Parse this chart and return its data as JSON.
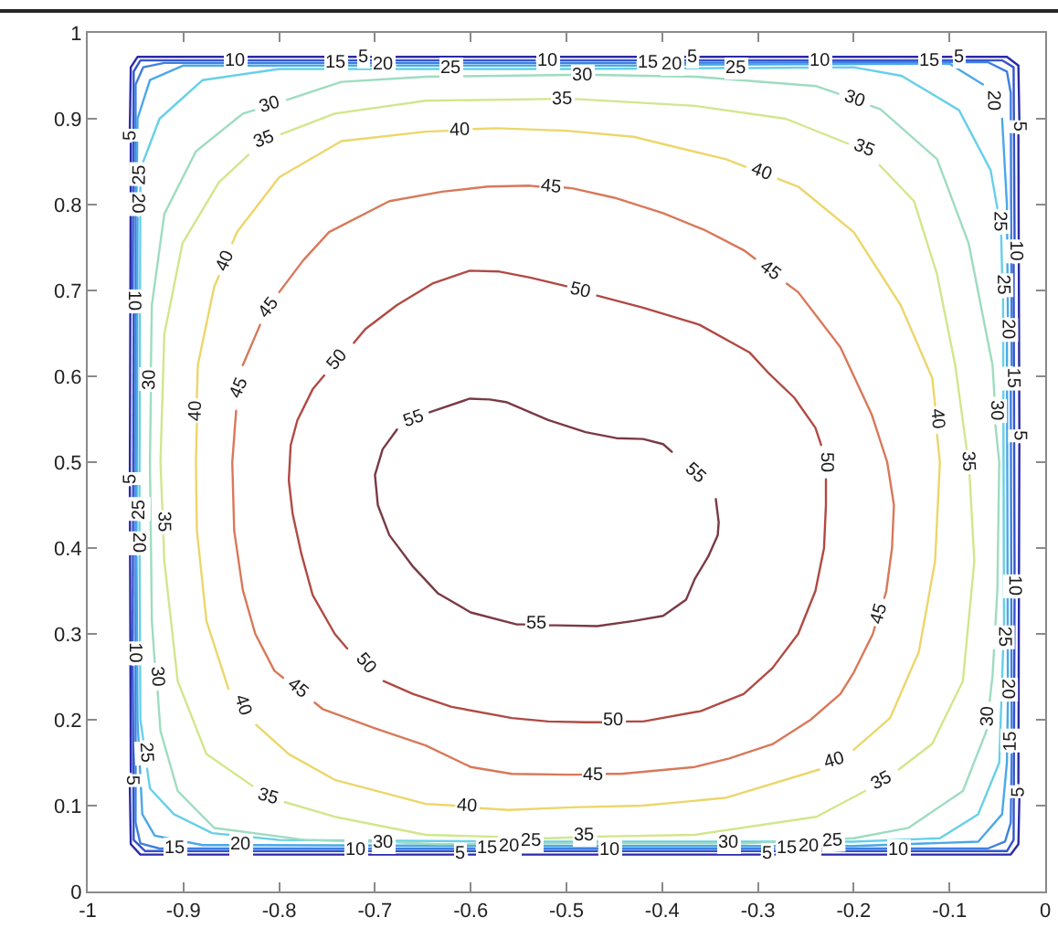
{
  "chart_data": {
    "type": "line",
    "xlim": [
      -1,
      0
    ],
    "ylim": [
      0,
      1
    ],
    "xticks": [
      -1,
      -0.9,
      -0.8,
      -0.7,
      -0.6,
      -0.5,
      -0.4,
      -0.3,
      -0.2,
      -0.1,
      0
    ],
    "yticks": [
      0,
      0.1,
      0.2,
      0.3,
      0.4,
      0.5,
      0.6,
      0.7,
      0.8,
      0.9,
      1
    ],
    "series": [
      {
        "color": "#2a2aa8",
        "x": [
          -0.956,
          -0.955
        ],
        "values": [
          0.489,
          0.871
        ]
      },
      {
        "color": "#2a2aa8",
        "x": [
          -0.956,
          -0.955,
          -0.948,
          -0.72
        ],
        "values": [
          0.889,
          0.96,
          0.972,
          0.972
        ]
      },
      {
        "color": "#2a2aa8",
        "x": [
          -0.704,
          -0.376
        ],
        "values": [
          0.972,
          0.972
        ]
      },
      {
        "color": "#2a2aa8",
        "x": [
          -0.36,
          -0.098
        ],
        "values": [
          0.972,
          0.972
        ]
      },
      {
        "color": "#2a2aa8",
        "x": [
          -0.082,
          -0.04,
          -0.028,
          -0.027
        ],
        "values": [
          0.972,
          0.972,
          0.962,
          0.899
        ]
      },
      {
        "color": "#2a2aa8",
        "x": [
          -0.028,
          -0.027
        ],
        "values": [
          0.881,
          0.539
        ]
      },
      {
        "color": "#2a2aa8",
        "x": [
          -0.956,
          -0.955
        ],
        "values": [
          0.471,
          0.139
        ]
      },
      {
        "color": "#2a2aa8",
        "x": [
          -0.956,
          -0.955,
          -0.945,
          -0.618
        ],
        "values": [
          0.121,
          0.055,
          0.043,
          0.043
        ]
      },
      {
        "color": "#2a2aa8",
        "x": [
          -0.602,
          -0.298
        ],
        "values": [
          0.043,
          0.043
        ]
      },
      {
        "color": "#2a2aa8",
        "x": [
          -0.282,
          -0.036,
          -0.028,
          -0.027
        ],
        "values": [
          0.043,
          0.043,
          0.055,
          0.108
        ]
      },
      {
        "color": "#2a2aa8",
        "x": [
          -0.028,
          -0.027
        ],
        "values": [
          0.126,
          0.521
        ]
      },
      {
        "color": "#3355cc",
        "x": [
          -0.953,
          -0.952
        ],
        "values": [
          0.292,
          0.672
        ]
      },
      {
        "color": "#3355cc",
        "x": [
          -0.953,
          -0.952,
          -0.945,
          -0.858
        ],
        "values": [
          0.702,
          0.955,
          0.968,
          0.968
        ]
      },
      {
        "color": "#3355cc",
        "x": [
          -0.832,
          -0.533
        ],
        "values": [
          0.968,
          0.968
        ]
      },
      {
        "color": "#3355cc",
        "x": [
          -0.507,
          -0.248
        ],
        "values": [
          0.968,
          0.968
        ]
      },
      {
        "color": "#3355cc",
        "x": [
          -0.222,
          -0.045,
          -0.033,
          -0.032
        ],
        "values": [
          0.968,
          0.968,
          0.96,
          0.76
        ]
      },
      {
        "color": "#3355cc",
        "x": [
          -0.033,
          -0.032
        ],
        "values": [
          0.73,
          0.37
        ]
      },
      {
        "color": "#3355cc",
        "x": [
          -0.953,
          -0.952,
          -0.94,
          -0.733
        ],
        "values": [
          0.262,
          0.06,
          0.047,
          0.047
        ]
      },
      {
        "color": "#3355cc",
        "x": [
          -0.707,
          -0.468
        ],
        "values": [
          0.047,
          0.047
        ]
      },
      {
        "color": "#3355cc",
        "x": [
          -0.442,
          -0.166
        ],
        "values": [
          0.047,
          0.047
        ]
      },
      {
        "color": "#3355cc",
        "x": [
          -0.14,
          -0.04,
          -0.033,
          -0.032
        ],
        "values": [
          0.047,
          0.047,
          0.06,
          0.34
        ]
      },
      {
        "color": "#3f7fe0",
        "x": [
          -0.921,
          -0.925,
          -0.945,
          -0.95,
          -0.95,
          -0.942,
          -0.92,
          -0.753
        ],
        "values": [
          0.05,
          0.05,
          0.056,
          0.08,
          0.94,
          0.96,
          0.965,
          0.965
        ]
      },
      {
        "color": "#3f7fe0",
        "x": [
          -0.727,
          -0.5,
          -0.428
        ],
        "values": [
          0.965,
          0.965,
          0.965
        ]
      },
      {
        "color": "#3f7fe0",
        "x": [
          -0.402,
          -0.133
        ],
        "values": [
          0.965,
          0.966
        ]
      },
      {
        "color": "#3f7fe0",
        "x": [
          -0.107,
          -0.06,
          -0.04,
          -0.036,
          -0.035
        ],
        "values": [
          0.966,
          0.966,
          0.955,
          0.93,
          0.613
        ]
      },
      {
        "color": "#3f7fe0",
        "x": [
          -0.036,
          -0.035
        ],
        "values": [
          0.583,
          0.19
        ]
      },
      {
        "color": "#3f7fe0",
        "x": [
          -0.895,
          -0.596
        ],
        "values": [
          0.05,
          0.05
        ]
      },
      {
        "color": "#3f7fe0",
        "x": [
          -0.57,
          -0.5,
          -0.283
        ],
        "values": [
          0.05,
          0.05,
          0.05
        ]
      },
      {
        "color": "#3f7fe0",
        "x": [
          -0.257,
          -0.06,
          -0.042,
          -0.036,
          -0.035
        ],
        "values": [
          0.05,
          0.05,
          0.058,
          0.08,
          0.16
        ]
      },
      {
        "color": "#4aa8e8",
        "x": [
          -0.949,
          -0.948
        ],
        "values": [
          0.42,
          0.785
        ]
      },
      {
        "color": "#4aa8e8",
        "x": [
          -0.949,
          -0.948,
          -0.935,
          -0.9,
          -0.703
        ],
        "values": [
          0.815,
          0.9,
          0.945,
          0.962,
          0.962
        ]
      },
      {
        "color": "#4aa8e8",
        "x": [
          -0.677,
          -0.5,
          -0.403
        ],
        "values": [
          0.962,
          0.962,
          0.962
        ]
      },
      {
        "color": "#4aa8e8",
        "x": [
          -0.377,
          -0.1,
          -0.065
        ],
        "values": [
          0.963,
          0.964,
          0.94
        ]
      },
      {
        "color": "#4aa8e8",
        "x": [
          -0.045,
          -0.04,
          -0.039
        ],
        "values": [
          0.9,
          0.8,
          0.67
        ]
      },
      {
        "color": "#4aa8e8",
        "x": [
          -0.04,
          -0.039
        ],
        "values": [
          0.64,
          0.25
        ]
      },
      {
        "color": "#4aa8e8",
        "x": [
          -0.949,
          -0.948,
          -0.943,
          -0.93,
          -0.88,
          -0.853
        ],
        "values": [
          0.39,
          0.2,
          0.09,
          0.065,
          0.054,
          0.054
        ]
      },
      {
        "color": "#4aa8e8",
        "x": [
          -0.827,
          -0.573
        ],
        "values": [
          0.054,
          0.053
        ]
      },
      {
        "color": "#4aa8e8",
        "x": [
          -0.547,
          -0.5,
          -0.259
        ],
        "values": [
          0.053,
          0.053,
          0.053
        ]
      },
      {
        "color": "#4aa8e8",
        "x": [
          -0.233,
          -0.2,
          -0.07,
          -0.045,
          -0.04,
          -0.039
        ],
        "values": [
          0.053,
          0.053,
          0.058,
          0.09,
          0.15,
          0.22
        ]
      },
      {
        "color": "#66d0e8",
        "x": [
          -0.946,
          -0.945
        ],
        "values": [
          0.46,
          0.82
        ]
      },
      {
        "color": "#66d0e8",
        "x": [
          -0.942,
          -0.925,
          -0.88,
          -0.8,
          -0.633
        ],
        "values": [
          0.85,
          0.9,
          0.945,
          0.958,
          0.958
        ]
      },
      {
        "color": "#66d0e8",
        "x": [
          -0.607,
          -0.5,
          -0.335
        ],
        "values": [
          0.958,
          0.958,
          0.959
        ]
      },
      {
        "color": "#66d0e8",
        "x": [
          -0.309,
          -0.2,
          -0.15,
          -0.09,
          -0.057,
          -0.05
        ],
        "values": [
          0.959,
          0.96,
          0.95,
          0.91,
          0.84,
          0.796
        ]
      },
      {
        "color": "#66d0e8",
        "x": [
          -0.046,
          -0.045
        ],
        "values": [
          0.764,
          0.72
        ]
      },
      {
        "color": "#66d0e8",
        "x": [
          -0.044,
          -0.043
        ],
        "values": [
          0.69,
          0.31
        ]
      },
      {
        "color": "#66d0e8",
        "x": [
          -0.209,
          -0.2,
          -0.11,
          -0.07,
          -0.048,
          -0.044
        ],
        "values": [
          0.058,
          0.058,
          0.062,
          0.09,
          0.15,
          0.28
        ]
      },
      {
        "color": "#66d0e8",
        "x": [
          -0.524,
          -0.5,
          -0.235
        ],
        "values": [
          0.058,
          0.058,
          0.058
        ]
      },
      {
        "color": "#66d0e8",
        "x": [
          -0.938,
          -0.935,
          -0.91,
          -0.87,
          -0.8,
          -0.55
        ],
        "values": [
          0.143,
          0.12,
          0.09,
          0.068,
          0.06,
          0.058
        ]
      },
      {
        "color": "#66d0e8",
        "x": [
          -0.946,
          -0.945,
          -0.942
        ],
        "values": [
          0.43,
          0.2,
          0.177
        ]
      },
      {
        "color": "#9edcc0",
        "x": [
          -0.93,
          -0.933,
          -0.935,
          -0.934
        ],
        "values": [
          0.267,
          0.315,
          0.5,
          0.581
        ]
      },
      {
        "color": "#9edcc0",
        "x": [
          -0.934,
          -0.933,
          -0.92,
          -0.887,
          -0.838,
          -0.826
        ],
        "values": [
          0.611,
          0.683,
          0.789,
          0.862,
          0.906,
          0.91
        ]
      },
      {
        "color": "#9edcc0",
        "x": [
          -0.792,
          -0.735,
          -0.647,
          -0.495
        ],
        "values": [
          0.922,
          0.943,
          0.949,
          0.951
        ]
      },
      {
        "color": "#9edcc0",
        "x": [
          -0.469,
          -0.366,
          -0.239,
          -0.216
        ],
        "values": [
          0.951,
          0.949,
          0.938,
          0.929
        ]
      },
      {
        "color": "#9edcc0",
        "x": [
          -0.182,
          -0.172,
          -0.113,
          -0.08,
          -0.055,
          -0.053
        ],
        "values": [
          0.915,
          0.911,
          0.853,
          0.755,
          0.613,
          0.577
        ]
      },
      {
        "color": "#9edcc0",
        "x": [
          -0.052,
          -0.048,
          -0.05,
          -0.055,
          -0.058
        ],
        "values": [
          0.543,
          0.5,
          0.35,
          0.251,
          0.222
        ]
      },
      {
        "color": "#9edcc0",
        "x": [
          -0.317,
          -0.313,
          -0.2,
          -0.143,
          -0.086,
          -0.061
        ],
        "values": [
          0.056,
          0.056,
          0.062,
          0.074,
          0.117,
          0.188
        ]
      },
      {
        "color": "#9edcc0",
        "x": [
          -0.677,
          -0.634,
          -0.5,
          -0.343
        ],
        "values": [
          0.057,
          0.055,
          0.056,
          0.056
        ]
      },
      {
        "color": "#9edcc0",
        "x": [
          -0.927,
          -0.924,
          -0.906,
          -0.868,
          -0.773,
          -0.703
        ],
        "values": [
          0.233,
          0.187,
          0.117,
          0.074,
          0.06,
          0.058
        ]
      },
      {
        "color": "#d2e68c",
        "x": [
          -0.922,
          -0.924,
          -0.92,
          -0.901,
          -0.863,
          -0.832
        ],
        "values": [
          0.445,
          0.5,
          0.649,
          0.755,
          0.826,
          0.858
        ]
      },
      {
        "color": "#d2e68c",
        "x": [
          -0.798,
          -0.742,
          -0.647,
          -0.517
        ],
        "values": [
          0.882,
          0.906,
          0.921,
          0.923
        ]
      },
      {
        "color": "#d2e68c",
        "x": [
          -0.491,
          -0.366,
          -0.271,
          -0.206
        ],
        "values": [
          0.923,
          0.915,
          0.9,
          0.871
        ]
      },
      {
        "color": "#d2e68c",
        "x": [
          -0.173,
          -0.137,
          -0.113,
          -0.094,
          -0.082
        ],
        "values": [
          0.846,
          0.804,
          0.719,
          0.613,
          0.515
        ]
      },
      {
        "color": "#d2e68c",
        "x": [
          -0.079,
          -0.074,
          -0.086,
          -0.118,
          -0.153
        ],
        "values": [
          0.485,
          0.385,
          0.245,
          0.172,
          0.142
        ]
      },
      {
        "color": "#d2e68c",
        "x": [
          -0.467,
          -0.366,
          -0.239,
          -0.188
        ],
        "values": [
          0.064,
          0.066,
          0.087,
          0.117
        ]
      },
      {
        "color": "#d2e68c",
        "x": [
          -0.794,
          -0.742,
          -0.647,
          -0.519,
          -0.493
        ],
        "values": [
          0.104,
          0.087,
          0.066,
          0.062,
          0.063
        ]
      },
      {
        "color": "#d2e68c",
        "x": [
          -0.921,
          -0.92,
          -0.906,
          -0.876,
          -0.828
        ],
        "values": [
          0.415,
          0.385,
          0.245,
          0.16,
          0.123
        ]
      },
      {
        "color": "#ecd66a",
        "x": [
          -0.853,
          -0.876,
          -0.886,
          -0.887,
          -0.886
        ],
        "values": [
          0.236,
          0.315,
          0.421,
          0.5,
          0.545
        ]
      },
      {
        "color": "#ecd66a",
        "x": [
          -0.886,
          -0.885,
          -0.868,
          -0.863
        ],
        "values": [
          0.575,
          0.613,
          0.704,
          0.717
        ]
      },
      {
        "color": "#ecd66a",
        "x": [
          -0.849,
          -0.844,
          -0.8,
          -0.735,
          -0.647,
          -0.623
        ],
        "values": [
          0.755,
          0.768,
          0.832,
          0.874,
          0.885,
          0.886
        ]
      },
      {
        "color": "#ecd66a",
        "x": [
          -0.597,
          -0.573,
          -0.5,
          -0.43,
          -0.334,
          -0.313
        ],
        "values": [
          0.888,
          0.889,
          0.886,
          0.879,
          0.853,
          0.844
        ]
      },
      {
        "color": "#ecd66a",
        "x": [
          -0.279,
          -0.258,
          -0.2,
          -0.151,
          -0.118,
          -0.115
        ],
        "values": [
          0.83,
          0.821,
          0.768,
          0.683,
          0.598,
          0.566
        ]
      },
      {
        "color": "#ecd66a",
        "x": [
          -0.113,
          -0.11,
          -0.115,
          -0.132,
          -0.162,
          -0.2
        ],
        "values": [
          0.532,
          0.5,
          0.385,
          0.279,
          0.202,
          0.165
        ]
      },
      {
        "color": "#ecd66a",
        "x": [
          -0.236,
          -0.334,
          -0.42,
          -0.494,
          -0.561,
          -0.591
        ],
        "values": [
          0.142,
          0.109,
          0.1,
          0.098,
          0.095,
          0.097
        ]
      },
      {
        "color": "#ecd66a",
        "x": [
          -0.617,
          -0.647,
          -0.742,
          -0.79,
          -0.824
        ],
        "values": [
          0.1,
          0.102,
          0.13,
          0.16,
          0.194
        ]
      },
      {
        "color": "#d9785a",
        "x": [
          -0.796,
          -0.805,
          -0.825,
          -0.838,
          -0.847,
          -0.849,
          -0.845
        ],
        "values": [
          0.249,
          0.257,
          0.3,
          0.351,
          0.42,
          0.5,
          0.56
        ]
      },
      {
        "color": "#d9785a",
        "x": [
          -0.838,
          -0.82
        ],
        "values": [
          0.613,
          0.66
        ]
      },
      {
        "color": "#d9785a",
        "x": [
          -0.8,
          -0.775,
          -0.748,
          -0.685,
          -0.63,
          -0.582,
          -0.538,
          -0.529
        ],
        "values": [
          0.698,
          0.735,
          0.768,
          0.804,
          0.815,
          0.821,
          0.822,
          0.821
        ]
      },
      {
        "color": "#d9785a",
        "x": [
          -0.503,
          -0.494,
          -0.45,
          -0.399,
          -0.355,
          -0.315,
          -0.303
        ],
        "values": [
          0.82,
          0.819,
          0.808,
          0.79,
          0.77,
          0.747,
          0.737
        ]
      },
      {
        "color": "#d9785a",
        "x": [
          -0.27,
          -0.258,
          -0.214,
          -0.181,
          -0.165,
          -0.158,
          -0.16,
          -0.166,
          -0.168
        ],
        "values": [
          0.708,
          0.698,
          0.634,
          0.555,
          0.5,
          0.45,
          0.4,
          0.35,
          0.342
        ]
      },
      {
        "color": "#d9785a",
        "x": [
          -0.178,
          -0.18,
          -0.2,
          -0.214,
          -0.245,
          -0.284,
          -0.33,
          -0.366,
          -0.443,
          -0.459
        ],
        "values": [
          0.308,
          0.3,
          0.255,
          0.23,
          0.2,
          0.172,
          0.155,
          0.145,
          0.137,
          0.137
        ]
      },
      {
        "color": "#d9785a",
        "x": [
          -0.484,
          -0.5,
          -0.557,
          -0.6,
          -0.647,
          -0.7,
          -0.754,
          -0.763
        ],
        "values": [
          0.136,
          0.136,
          0.137,
          0.145,
          0.17,
          0.19,
          0.212,
          0.22
        ]
      },
      {
        "color": "#b04a44",
        "x": [
          -0.729,
          -0.742,
          -0.765,
          -0.777,
          -0.786,
          -0.79,
          -0.788,
          -0.781,
          -0.765,
          -0.753
        ],
        "values": [
          0.283,
          0.3,
          0.345,
          0.394,
          0.44,
          0.479,
          0.52,
          0.549,
          0.585,
          0.601
        ]
      },
      {
        "color": "#b04a44",
        "x": [
          -0.722,
          -0.71,
          -0.677,
          -0.64,
          -0.601,
          -0.57,
          -0.538,
          -0.5
        ],
        "values": [
          0.639,
          0.655,
          0.683,
          0.708,
          0.723,
          0.722,
          0.715,
          0.705
        ]
      },
      {
        "color": "#b04a44",
        "x": [
          -0.468,
          -0.42,
          -0.361,
          -0.309,
          -0.29,
          -0.262,
          -0.24,
          -0.234
        ],
        "values": [
          0.694,
          0.68,
          0.66,
          0.628,
          0.605,
          0.575,
          0.54,
          0.52
        ]
      },
      {
        "color": "#b04a44",
        "x": [
          -0.229,
          -0.229,
          -0.231,
          -0.24,
          -0.258,
          -0.285,
          -0.315,
          -0.36,
          -0.42,
          -0.437
        ],
        "values": [
          0.48,
          0.45,
          0.4,
          0.35,
          0.3,
          0.26,
          0.23,
          0.21,
          0.198,
          0.198
        ]
      },
      {
        "color": "#b04a44",
        "x": [
          -0.463,
          -0.48,
          -0.519,
          -0.557,
          -0.62,
          -0.66,
          -0.691
        ],
        "values": [
          0.197,
          0.197,
          0.198,
          0.202,
          0.215,
          0.23,
          0.245
        ]
      },
      {
        "color": "#7a3a44",
        "x": [
          -0.643,
          -0.601,
          -0.58,
          -0.563,
          -0.519,
          -0.48,
          -0.448,
          -0.42,
          -0.399,
          -0.39
        ],
        "values": [
          0.558,
          0.574,
          0.573,
          0.57,
          0.549,
          0.535,
          0.528,
          0.527,
          0.521,
          0.512
        ]
      },
      {
        "color": "#7a3a44",
        "x": [
          -0.344,
          -0.341,
          -0.342,
          -0.352,
          -0.366,
          -0.375,
          -0.399,
          -0.43,
          -0.468,
          -0.51,
          -0.518
        ],
        "values": [
          0.457,
          0.43,
          0.415,
          0.39,
          0.364,
          0.34,
          0.321,
          0.315,
          0.309,
          0.31,
          0.31
        ]
      },
      {
        "color": "#7a3a44",
        "x": [
          -0.544,
          -0.552,
          -0.6,
          -0.634,
          -0.66,
          -0.685,
          -0.697,
          -0.7,
          -0.692,
          -0.677
        ],
        "values": [
          0.311,
          0.311,
          0.325,
          0.347,
          0.378,
          0.415,
          0.45,
          0.485,
          0.515,
          0.538
        ]
      }
    ],
    "annotations": [
      {
        "text": "5",
        "x": -0.712,
        "y": 0.972
      },
      {
        "text": "5",
        "x": -0.368,
        "y": 0.972
      },
      {
        "text": "5",
        "x": -0.09,
        "y": 0.972
      },
      {
        "text": "5",
        "x": -0.028,
        "y": 0.89
      },
      {
        "text": "5",
        "x": -0.028,
        "y": 0.53
      },
      {
        "text": "5",
        "x": -0.028,
        "y": 0.117
      },
      {
        "text": "5",
        "x": -0.61,
        "y": 0.043
      },
      {
        "text": "5",
        "x": -0.29,
        "y": 0.043
      },
      {
        "text": "5",
        "x": -0.955,
        "y": 0.88
      },
      {
        "text": "5",
        "x": -0.955,
        "y": 0.48
      },
      {
        "text": "5",
        "x": -0.955,
        "y": 0.13
      },
      {
        "text": "10",
        "x": -0.845,
        "y": 0.968
      },
      {
        "text": "10",
        "x": -0.52,
        "y": 0.968
      },
      {
        "text": "10",
        "x": -0.235,
        "y": 0.968
      },
      {
        "text": "10",
        "x": -0.032,
        "y": 0.745
      },
      {
        "text": "10",
        "x": -0.032,
        "y": 0.355
      },
      {
        "text": "10",
        "x": -0.72,
        "y": 0.047
      },
      {
        "text": "10",
        "x": -0.455,
        "y": 0.047
      },
      {
        "text": "10",
        "x": -0.153,
        "y": 0.047
      },
      {
        "text": "10",
        "x": -0.952,
        "y": 0.687
      },
      {
        "text": "10",
        "x": -0.952,
        "y": 0.277
      },
      {
        "text": "15",
        "x": -0.74,
        "y": 0.965
      },
      {
        "text": "15",
        "x": -0.415,
        "y": 0.965
      },
      {
        "text": "15",
        "x": -0.12,
        "y": 0.966
      },
      {
        "text": "15",
        "x": -0.035,
        "y": 0.598
      },
      {
        "text": "15",
        "x": -0.035,
        "y": 0.175
      },
      {
        "text": "15",
        "x": -0.908,
        "y": 0.05
      },
      {
        "text": "15",
        "x": -0.583,
        "y": 0.05
      },
      {
        "text": "15",
        "x": -0.27,
        "y": 0.05
      },
      {
        "text": "20",
        "x": -0.69,
        "y": 0.962
      },
      {
        "text": "20",
        "x": -0.39,
        "y": 0.962
      },
      {
        "text": "20",
        "x": -0.055,
        "y": 0.92
      },
      {
        "text": "20",
        "x": -0.039,
        "y": 0.655
      },
      {
        "text": "20",
        "x": -0.04,
        "y": 0.235
      },
      {
        "text": "20",
        "x": -0.84,
        "y": 0.054
      },
      {
        "text": "20",
        "x": -0.56,
        "y": 0.053
      },
      {
        "text": "20",
        "x": -0.246,
        "y": 0.053
      },
      {
        "text": "20",
        "x": -0.948,
        "y": 0.8
      },
      {
        "text": "20",
        "x": -0.948,
        "y": 0.405
      },
      {
        "text": "25",
        "x": -0.62,
        "y": 0.958
      },
      {
        "text": "25",
        "x": -0.322,
        "y": 0.959
      },
      {
        "text": "25",
        "x": -0.048,
        "y": 0.78
      },
      {
        "text": "25",
        "x": -0.045,
        "y": 0.705
      },
      {
        "text": "25",
        "x": -0.043,
        "y": 0.295
      },
      {
        "text": "25",
        "x": -0.537,
        "y": 0.058
      },
      {
        "text": "25",
        "x": -0.222,
        "y": 0.058
      },
      {
        "text": "25",
        "x": -0.94,
        "y": 0.16
      },
      {
        "text": "25",
        "x": -0.945,
        "y": 0.835
      },
      {
        "text": "25",
        "x": -0.945,
        "y": 0.445
      },
      {
        "text": "30",
        "x": -0.482,
        "y": 0.951
      },
      {
        "text": "30",
        "x": -0.809,
        "y": 0.916
      },
      {
        "text": "30",
        "x": -0.199,
        "y": 0.922
      },
      {
        "text": "30",
        "x": -0.052,
        "y": 0.56
      },
      {
        "text": "30",
        "x": -0.059,
        "y": 0.205
      },
      {
        "text": "30",
        "x": -0.69,
        "y": 0.057
      },
      {
        "text": "30",
        "x": -0.33,
        "y": 0.056
      },
      {
        "text": "30",
        "x": -0.934,
        "y": 0.596
      },
      {
        "text": "30",
        "x": -0.928,
        "y": 0.25
      },
      {
        "text": "35",
        "x": -0.922,
        "y": 0.43
      },
      {
        "text": "35",
        "x": -0.815,
        "y": 0.875
      },
      {
        "text": "35",
        "x": -0.504,
        "y": 0.923
      },
      {
        "text": "35",
        "x": -0.189,
        "y": 0.864
      },
      {
        "text": "35",
        "x": -0.08,
        "y": 0.5
      },
      {
        "text": "35",
        "x": -0.17,
        "y": 0.128
      },
      {
        "text": "35",
        "x": -0.48,
        "y": 0.064
      },
      {
        "text": "35",
        "x": -0.811,
        "y": 0.11
      },
      {
        "text": "40",
        "x": -0.886,
        "y": 0.56
      },
      {
        "text": "40",
        "x": -0.856,
        "y": 0.736
      },
      {
        "text": "40",
        "x": -0.61,
        "y": 0.887
      },
      {
        "text": "40",
        "x": -0.296,
        "y": 0.837
      },
      {
        "text": "40",
        "x": -0.114,
        "y": 0.549
      },
      {
        "text": "40",
        "x": -0.22,
        "y": 0.152
      },
      {
        "text": "40",
        "x": -0.604,
        "y": 0.099
      },
      {
        "text": "40",
        "x": -0.839,
        "y": 0.215
      },
      {
        "text": "45",
        "x": -0.842,
        "y": 0.587
      },
      {
        "text": "45",
        "x": -0.81,
        "y": 0.679
      },
      {
        "text": "45",
        "x": -0.516,
        "y": 0.821
      },
      {
        "text": "45",
        "x": -0.287,
        "y": 0.723
      },
      {
        "text": "45",
        "x": -0.173,
        "y": 0.325
      },
      {
        "text": "45",
        "x": -0.472,
        "y": 0.136
      },
      {
        "text": "45",
        "x": -0.78,
        "y": 0.235
      },
      {
        "text": "50",
        "x": -0.738,
        "y": 0.62
      },
      {
        "text": "50",
        "x": -0.484,
        "y": 0.7
      },
      {
        "text": "50",
        "x": -0.228,
        "y": 0.5
      },
      {
        "text": "50",
        "x": -0.45,
        "y": 0.198
      },
      {
        "text": "50",
        "x": -0.71,
        "y": 0.264
      },
      {
        "text": "55",
        "x": -0.659,
        "y": 0.549
      },
      {
        "text": "55",
        "x": -0.365,
        "y": 0.487
      },
      {
        "text": "55",
        "x": -0.531,
        "y": 0.311
      }
    ]
  }
}
